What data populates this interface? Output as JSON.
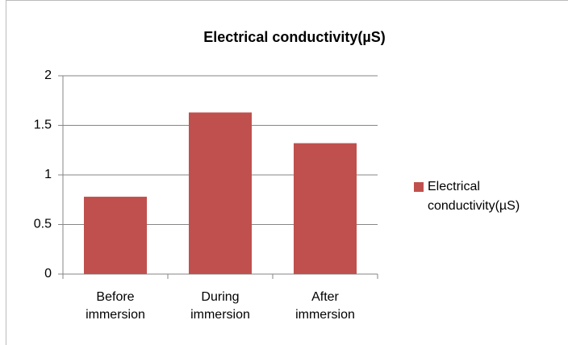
{
  "chart_data": {
    "type": "bar",
    "title": "Electrical conductivity(µS)",
    "categories": [
      "Before immersion",
      "During immersion",
      "After immersion"
    ],
    "series": [
      {
        "name": "Electrical conductivity(µS)",
        "color": "#c0504d",
        "values": [
          0.78,
          1.63,
          1.32
        ]
      }
    ],
    "ylim": [
      0,
      2
    ],
    "yticks": [
      0,
      0.5,
      1,
      1.5,
      2
    ],
    "grid": true,
    "legend": "right"
  }
}
